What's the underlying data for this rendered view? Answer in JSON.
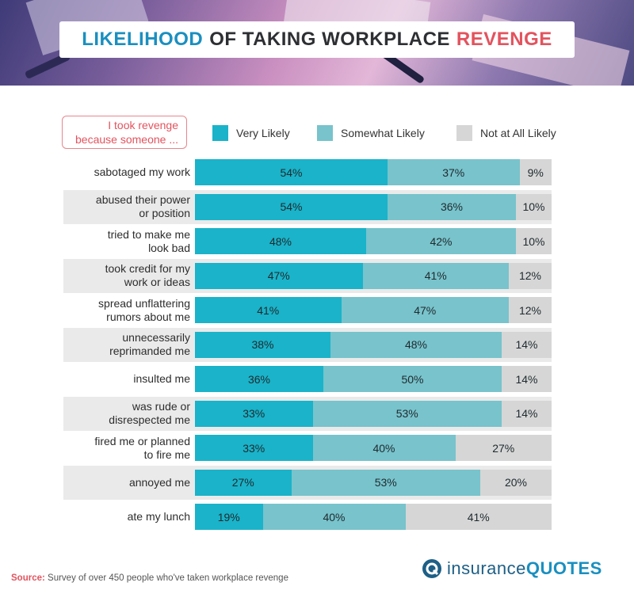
{
  "title": {
    "part1": "LIKELIHOOD",
    "part2": "OF TAKING WORKPLACE",
    "part3": "REVENGE"
  },
  "callout": {
    "line1": "I took revenge",
    "line2": "because someone ..."
  },
  "colors": {
    "very_likely": "#1ab3c9",
    "somewhat_likely": "#78c3cc",
    "not_at_all_likely": "#d6d6d6",
    "accent_red": "#e3535e",
    "accent_blue": "#1a8fc0"
  },
  "source": {
    "label": "Source:",
    "text": "Survey of over 450 people who've taken workplace revenge"
  },
  "logo": {
    "icon": "shield-q-icon",
    "text1": "insurance",
    "text2": "QUOTES"
  },
  "chart_data": {
    "type": "bar",
    "orientation": "horizontal",
    "stacked": true,
    "title": "LIKELIHOOD OF TAKING WORKPLACE REVENGE",
    "categories": [
      [
        "sabotaged my work"
      ],
      [
        "abused their power",
        "or position"
      ],
      [
        "tried to make me",
        "look bad"
      ],
      [
        "took credit for my",
        "work or ideas"
      ],
      [
        "spread unflattering",
        "rumors about me"
      ],
      [
        "unnecessarily",
        "reprimanded me"
      ],
      [
        "insulted me"
      ],
      [
        "was rude or",
        "disrespected me"
      ],
      [
        "fired me or planned",
        "to fire me"
      ],
      [
        "annoyed me"
      ],
      [
        "ate my lunch"
      ]
    ],
    "series": [
      {
        "name": "Very Likely",
        "values": [
          54,
          54,
          48,
          47,
          41,
          38,
          36,
          33,
          33,
          27,
          19
        ]
      },
      {
        "name": "Somewhat Likely",
        "values": [
          37,
          36,
          42,
          41,
          47,
          48,
          50,
          53,
          40,
          53,
          40
        ]
      },
      {
        "name": "Not at All Likely",
        "values": [
          9,
          10,
          10,
          12,
          12,
          14,
          14,
          14,
          27,
          20,
          41
        ]
      }
    ],
    "value_suffix": "%",
    "xlim": [
      0,
      100
    ],
    "legend_position": "top"
  }
}
